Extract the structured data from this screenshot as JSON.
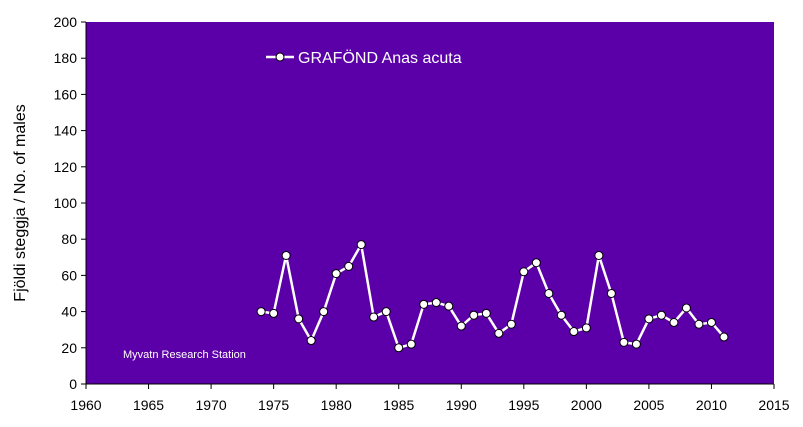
{
  "chart_data": {
    "type": "line",
    "title": "",
    "xlabel": "",
    "ylabel": "Fjöldi steggja / No. of males",
    "xlim": [
      1960,
      2015
    ],
    "ylim": [
      0,
      200
    ],
    "x_ticks": [
      1960,
      1965,
      1970,
      1975,
      1980,
      1985,
      1990,
      1995,
      2000,
      2005,
      2010,
      2015
    ],
    "y_ticks": [
      0,
      20,
      40,
      60,
      80,
      100,
      120,
      140,
      160,
      180,
      200
    ],
    "grid": false,
    "legend_position": "top-center",
    "annotation": "Myvatn Research Station",
    "series": [
      {
        "name": "GRAFÖND Anas acuta",
        "x": [
          1974,
          1975,
          1976,
          1977,
          1978,
          1979,
          1980,
          1981,
          1982,
          1983,
          1984,
          1985,
          1986,
          1987,
          1988,
          1989,
          1990,
          1991,
          1992,
          1993,
          1994,
          1995,
          1996,
          1997,
          1998,
          1999,
          2000,
          2001,
          2002,
          2003,
          2004,
          2005,
          2006,
          2007,
          2008,
          2009,
          2010,
          2011
        ],
        "y": [
          40,
          39,
          71,
          36,
          24,
          40,
          61,
          65,
          77,
          37,
          40,
          20,
          22,
          44,
          45,
          43,
          32,
          38,
          39,
          28,
          33,
          62,
          67,
          50,
          38,
          29,
          31,
          71,
          50,
          23,
          22,
          36,
          38,
          34,
          42,
          33,
          34,
          26
        ]
      }
    ]
  },
  "colors": {
    "plot_background": "#5B00A8",
    "line": "#ffffff",
    "marker_fill": "#ffffff",
    "marker_stroke": "#000000",
    "axis": "#000000"
  }
}
